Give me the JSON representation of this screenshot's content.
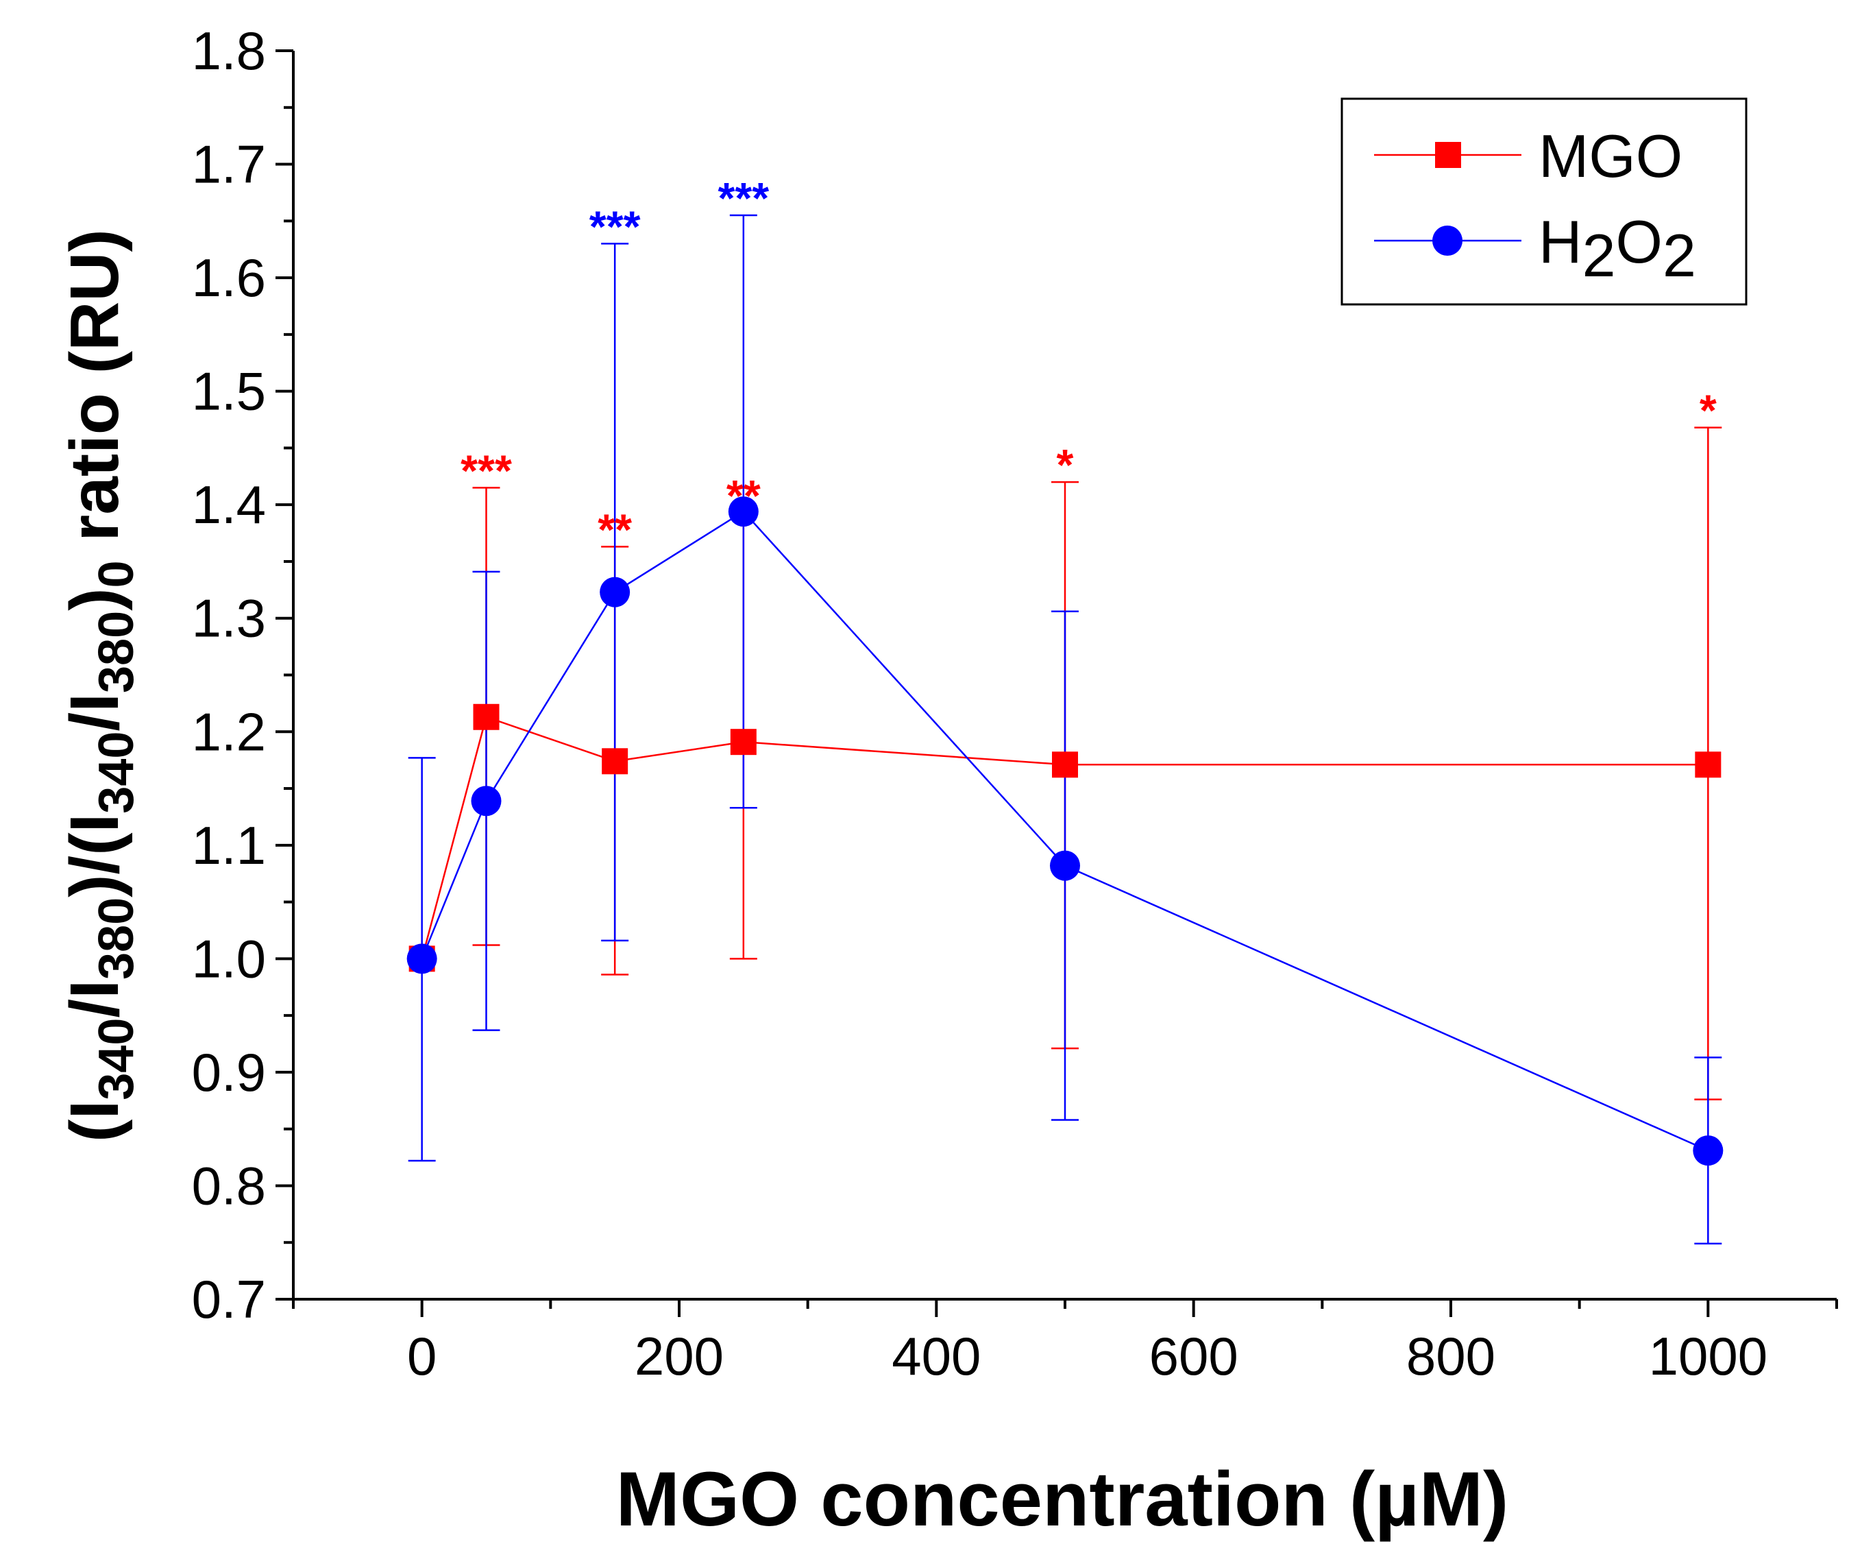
{
  "chart_data": {
    "type": "line",
    "xlabel": "MGO concentration (µM)",
    "ylabel": {
      "parts": [
        {
          "text": "(I",
          "sub": false
        },
        {
          "text": "340",
          "sub": true
        },
        {
          "text": "/I",
          "sub": false
        },
        {
          "text": "380",
          "sub": true
        },
        {
          "text": ")/(I",
          "sub": false
        },
        {
          "text": "340",
          "sub": true
        },
        {
          "text": "/I",
          "sub": false
        },
        {
          "text": "380",
          "sub": true
        },
        {
          "text": ")",
          "sub": false
        },
        {
          "text": "0",
          "sub": true
        },
        {
          "text": " ratio   (RU)",
          "sub": false
        }
      ]
    },
    "xlim": [
      -100,
      1100
    ],
    "ylim": [
      0.7,
      1.8
    ],
    "xticks": [
      0,
      200,
      400,
      600,
      800,
      1000
    ],
    "xticks_minor": [
      -100,
      100,
      300,
      500,
      700,
      900,
      1100
    ],
    "yticks": [
      0.7,
      0.8,
      0.9,
      1.0,
      1.1,
      1.2,
      1.3,
      1.4,
      1.5,
      1.6,
      1.7,
      1.8
    ],
    "grid": false,
    "legend_position": "top-right",
    "series": [
      {
        "key": "mgo",
        "name": "MGO",
        "name_parts": [
          {
            "text": "MGO",
            "sub": false
          }
        ],
        "color": "#ff0000",
        "marker": "square",
        "x": [
          0,
          50,
          150,
          250,
          500,
          1000
        ],
        "y": [
          1.0,
          1.213,
          1.174,
          1.191,
          1.171,
          1.171
        ],
        "err_low": [
          1.0,
          1.012,
          0.986,
          1.0,
          0.921,
          0.876
        ],
        "err_high": [
          1.0,
          1.415,
          1.363,
          1.393,
          1.42,
          1.468
        ],
        "significance": [
          "",
          "***",
          "**",
          "**",
          "*",
          "*"
        ]
      },
      {
        "key": "h2o2",
        "name": "H2O2",
        "name_parts": [
          {
            "text": "H",
            "sub": false
          },
          {
            "text": "2",
            "sub": true
          },
          {
            "text": "O",
            "sub": false
          },
          {
            "text": "2",
            "sub": true
          }
        ],
        "color": "#0000ff",
        "marker": "circle",
        "x": [
          0,
          50,
          150,
          250,
          500,
          1000
        ],
        "y": [
          1.0,
          1.139,
          1.323,
          1.394,
          1.082,
          0.831
        ],
        "err_low": [
          0.822,
          0.937,
          1.016,
          1.133,
          0.858,
          0.749
        ],
        "err_high": [
          1.177,
          1.341,
          1.63,
          1.655,
          1.306,
          0.913
        ],
        "significance": [
          "",
          "",
          "***",
          "***",
          "",
          ""
        ]
      }
    ]
  }
}
